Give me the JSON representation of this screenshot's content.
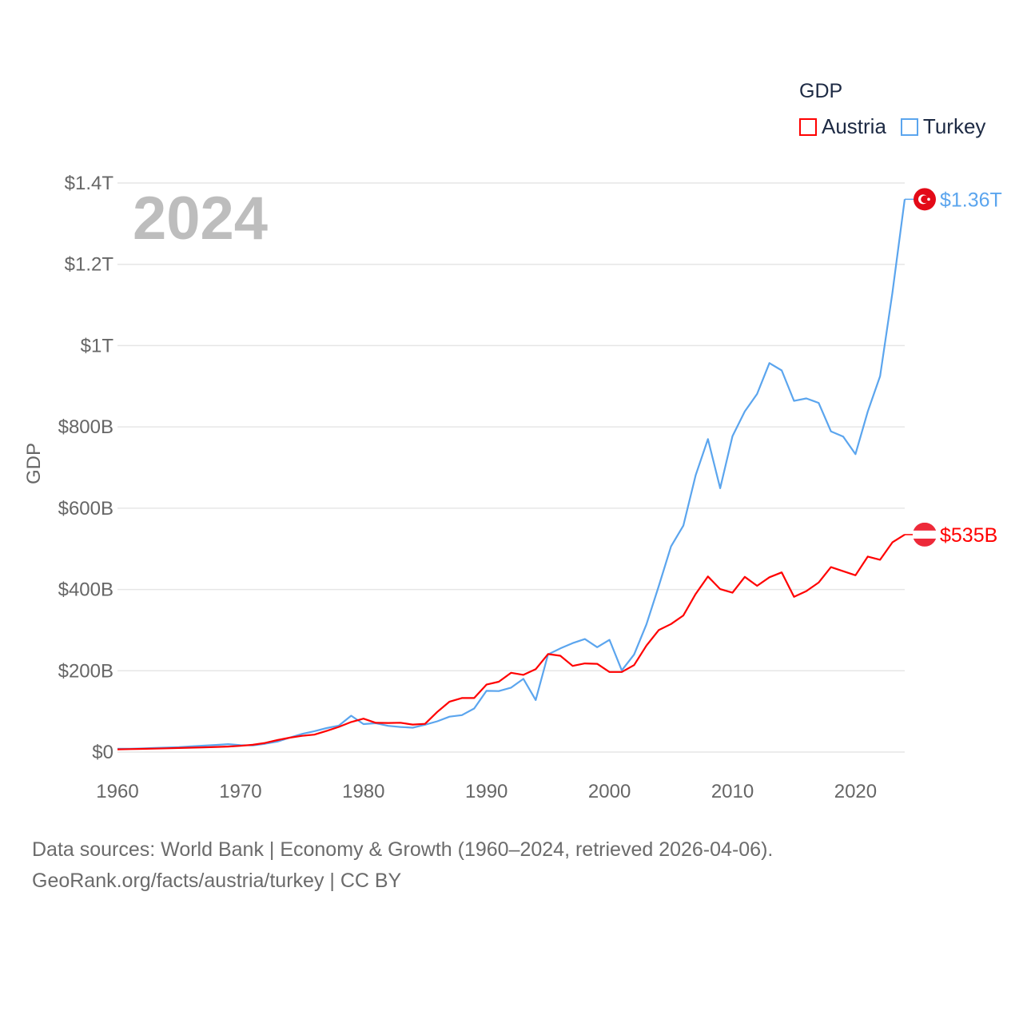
{
  "chart_data": {
    "type": "line",
    "title": "GDP",
    "ylabel": "GDP",
    "xlabel": "",
    "current_year_label": "2024",
    "xlim": [
      1960,
      2024
    ],
    "ylim": [
      0,
      1400
    ],
    "y_unit": "billion USD",
    "x_ticks": [
      "1960",
      "1970",
      "1980",
      "1990",
      "2000",
      "2010",
      "2020"
    ],
    "y_ticks": [
      {
        "value": 0,
        "label": "$0"
      },
      {
        "value": 200,
        "label": "$200B"
      },
      {
        "value": 400,
        "label": "$400B"
      },
      {
        "value": 600,
        "label": "$600B"
      },
      {
        "value": 800,
        "label": "$800B"
      },
      {
        "value": 1000,
        "label": "$1T"
      },
      {
        "value": 1200,
        "label": "$1.2T"
      },
      {
        "value": 1400,
        "label": "$1.4T"
      }
    ],
    "grid": true,
    "legend_position": "top-right",
    "x": [
      1960,
      1961,
      1962,
      1963,
      1964,
      1965,
      1966,
      1967,
      1968,
      1969,
      1970,
      1971,
      1972,
      1973,
      1974,
      1975,
      1976,
      1977,
      1978,
      1979,
      1980,
      1981,
      1982,
      1983,
      1984,
      1985,
      1986,
      1987,
      1988,
      1989,
      1990,
      1991,
      1992,
      1993,
      1994,
      1995,
      1996,
      1997,
      1998,
      1999,
      2000,
      2001,
      2002,
      2003,
      2004,
      2005,
      2006,
      2007,
      2008,
      2009,
      2010,
      2011,
      2012,
      2013,
      2014,
      2015,
      2016,
      2017,
      2018,
      2019,
      2020,
      2021,
      2022,
      2023,
      2024
    ],
    "series": [
      {
        "name": "Austria",
        "color": "#ff0000",
        "end_label": "$535B",
        "values": [
          6.6,
          7.3,
          7.8,
          8.4,
          9.2,
          10.0,
          10.9,
          11.6,
          12.5,
          13.6,
          15.4,
          17.9,
          22.4,
          29.5,
          35.4,
          40.0,
          42.9,
          51.9,
          62.0,
          74.0,
          82.1,
          72.0,
          71.6,
          72.1,
          67.6,
          69.4,
          99.0,
          124.0,
          133.0,
          133.0,
          166.0,
          173.0,
          195.0,
          190.0,
          204.0,
          241.0,
          237.0,
          212.0,
          218.0,
          217.0,
          197.0,
          197.0,
          214.0,
          262.0,
          300.0,
          315.0,
          336.0,
          389.0,
          432.0,
          401.0,
          392.0,
          431.0,
          409.0,
          430.0,
          442.0,
          382.0,
          396.0,
          417.0,
          455.0,
          445.0,
          435.0,
          481.0,
          473.0,
          516.0,
          535.0
        ]
      },
      {
        "name": "Turkey",
        "color": "#5ba5ee",
        "end_label": "$1.36T",
        "values": [
          8.0,
          8.0,
          8.9,
          10.3,
          11.2,
          11.9,
          14.1,
          15.7,
          17.5,
          19.5,
          17.1,
          16.4,
          20.4,
          25.7,
          35.6,
          44.6,
          51.3,
          59.0,
          65.1,
          89.4,
          68.8,
          71.0,
          64.5,
          61.7,
          59.9,
          67.2,
          75.7,
          87.2,
          90.9,
          107.1,
          150.7,
          150.0,
          158.5,
          180.2,
          128.0,
          240.0,
          255.0,
          268.0,
          278.0,
          258.0,
          276.0,
          201.0,
          240.0,
          314.0,
          408.0,
          506.0,
          557.0,
          681.0,
          770.0,
          649.0,
          777.0,
          838.0,
          881.0,
          957.0,
          939.0,
          864.0,
          870.0,
          859.0,
          789.0,
          776.0,
          733.0,
          838.0,
          925.0,
          1130.0,
          1360.0
        ]
      }
    ]
  },
  "legend": {
    "title": "GDP",
    "items": [
      "Austria",
      "Turkey"
    ]
  },
  "footer": {
    "line1": "Data sources: World Bank | Economy & Growth (1960–2024, retrieved 2026-04-06).",
    "line2": "GeoRank.org/facts/austria/turkey | CC BY"
  }
}
